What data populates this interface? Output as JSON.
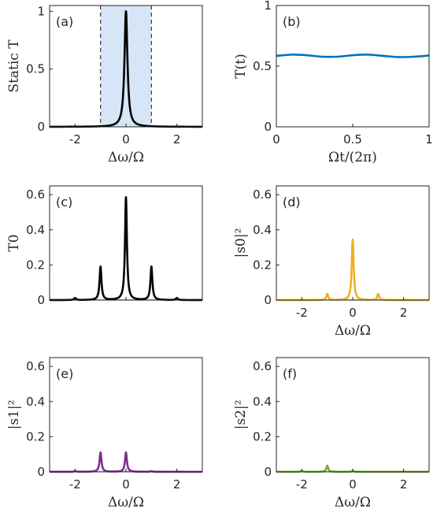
{
  "chart_data": [
    {
      "panel_label": "(a)",
      "type": "line",
      "ylabel": "Static T",
      "xlabel": "Δω/Ω",
      "xlim": [
        -3,
        3
      ],
      "ylim": [
        0,
        1.05
      ],
      "xticks": [
        -2,
        0,
        2
      ],
      "yticks": [
        0,
        0.5,
        1
      ],
      "yticklabels": [
        "0",
        "0.5",
        "1"
      ],
      "shaded_region": [
        -1,
        1
      ],
      "dashed_lines": [
        -1,
        1
      ],
      "line_color": "#000000",
      "shade_color": "#d7e6f7",
      "lorentzians": [
        {
          "center": 0,
          "height": 1.0,
          "width": 0.07
        }
      ]
    },
    {
      "panel_label": "(b)",
      "type": "line",
      "ylabel": "T(t)",
      "xlabel": "Ωt/(2π)",
      "xlim": [
        0,
        1
      ],
      "ylim": [
        0,
        1
      ],
      "xticks": [
        0,
        0.5,
        1
      ],
      "yticks": [
        0,
        0.5,
        1
      ],
      "yticklabels": [
        "0",
        "0.5",
        "1"
      ],
      "line_color": "#0072bd",
      "x": [
        0,
        0.1,
        0.2,
        0.3,
        0.4,
        0.5,
        0.6,
        0.7,
        0.8,
        0.9,
        1.0
      ],
      "y": [
        0.585,
        0.595,
        0.59,
        0.578,
        0.578,
        0.59,
        0.595,
        0.585,
        0.575,
        0.578,
        0.588
      ]
    },
    {
      "panel_label": "(c)",
      "type": "line",
      "ylabel": "T0",
      "xlabel": "",
      "xlim": [
        -3,
        3
      ],
      "ylim": [
        0,
        0.65
      ],
      "xticks": [],
      "yticks": [
        0,
        0.2,
        0.4,
        0.6
      ],
      "yticklabels": [
        "0",
        "0.2",
        "0.4",
        "0.6"
      ],
      "line_color": "#000000",
      "lorentzians": [
        {
          "center": 0,
          "height": 0.585,
          "width": 0.045
        },
        {
          "center": -1,
          "height": 0.19,
          "width": 0.045
        },
        {
          "center": 1,
          "height": 0.19,
          "width": 0.045
        },
        {
          "center": -2,
          "height": 0.012,
          "width": 0.045
        },
        {
          "center": 2,
          "height": 0.012,
          "width": 0.045
        }
      ]
    },
    {
      "panel_label": "(d)",
      "type": "line",
      "ylabel": "|s0|²",
      "xlabel": "Δω/Ω",
      "xlim": [
        -3,
        3
      ],
      "ylim": [
        0,
        0.65
      ],
      "xticks": [
        -2,
        0,
        2
      ],
      "yticks": [
        0,
        0.2,
        0.4,
        0.6
      ],
      "yticklabels": [
        "0",
        "0.2",
        "0.4",
        "0.6"
      ],
      "line_color": "#edb120",
      "lorentzians": [
        {
          "center": 0,
          "height": 0.345,
          "width": 0.045
        },
        {
          "center": -1,
          "height": 0.035,
          "width": 0.045
        },
        {
          "center": 1,
          "height": 0.035,
          "width": 0.045
        }
      ]
    },
    {
      "panel_label": "(e)",
      "type": "line",
      "ylabel": "|s1|²",
      "xlabel": "Δω/Ω",
      "xlim": [
        -3,
        3
      ],
      "ylim": [
        0,
        0.65
      ],
      "xticks": [
        -2,
        0,
        2
      ],
      "yticks": [
        0,
        0.2,
        0.4,
        0.6
      ],
      "yticklabels": [
        "0",
        "0.2",
        "0.4",
        "0.6"
      ],
      "line_color": "#7e2f8e",
      "lorentzians": [
        {
          "center": -1,
          "height": 0.11,
          "width": 0.045
        },
        {
          "center": 0,
          "height": 0.11,
          "width": 0.045
        },
        {
          "center": -2,
          "height": 0.004,
          "width": 0.045
        },
        {
          "center": 1,
          "height": 0.004,
          "width": 0.045
        }
      ]
    },
    {
      "panel_label": "(f)",
      "type": "line",
      "ylabel": "|s2|²",
      "xlabel": "Δω/Ω",
      "xlim": [
        -3,
        3
      ],
      "ylim": [
        0,
        0.65
      ],
      "xticks": [
        -2,
        0,
        2
      ],
      "yticks": [
        0,
        0.2,
        0.4,
        0.6
      ],
      "yticklabels": [
        "0",
        "0.2",
        "0.4",
        "0.6"
      ],
      "line_color": "#77ac30",
      "lorentzians": [
        {
          "center": -1,
          "height": 0.035,
          "width": 0.045
        },
        {
          "center": -2,
          "height": 0.006,
          "width": 0.045
        },
        {
          "center": 0,
          "height": 0.006,
          "width": 0.045
        }
      ]
    }
  ]
}
